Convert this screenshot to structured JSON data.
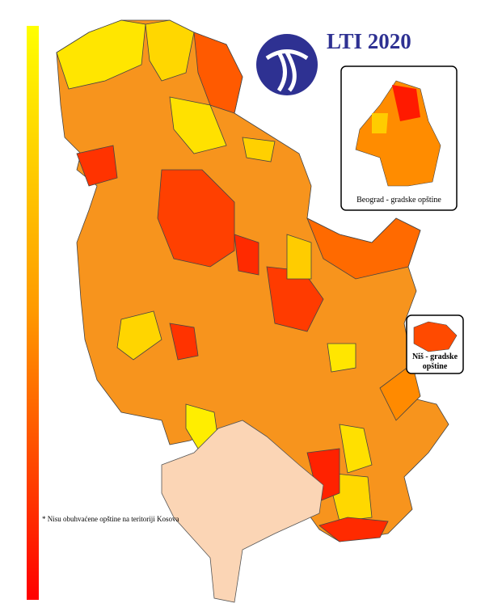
{
  "header": {
    "title": "LTI 2020"
  },
  "insets": [
    {
      "label": "Beograd - gradske opštine"
    },
    {
      "label": "Niš - gradske opštine"
    }
  ],
  "footnote": "* Nisu obuhvaćene opštine na teritoriji Kosova"
}
